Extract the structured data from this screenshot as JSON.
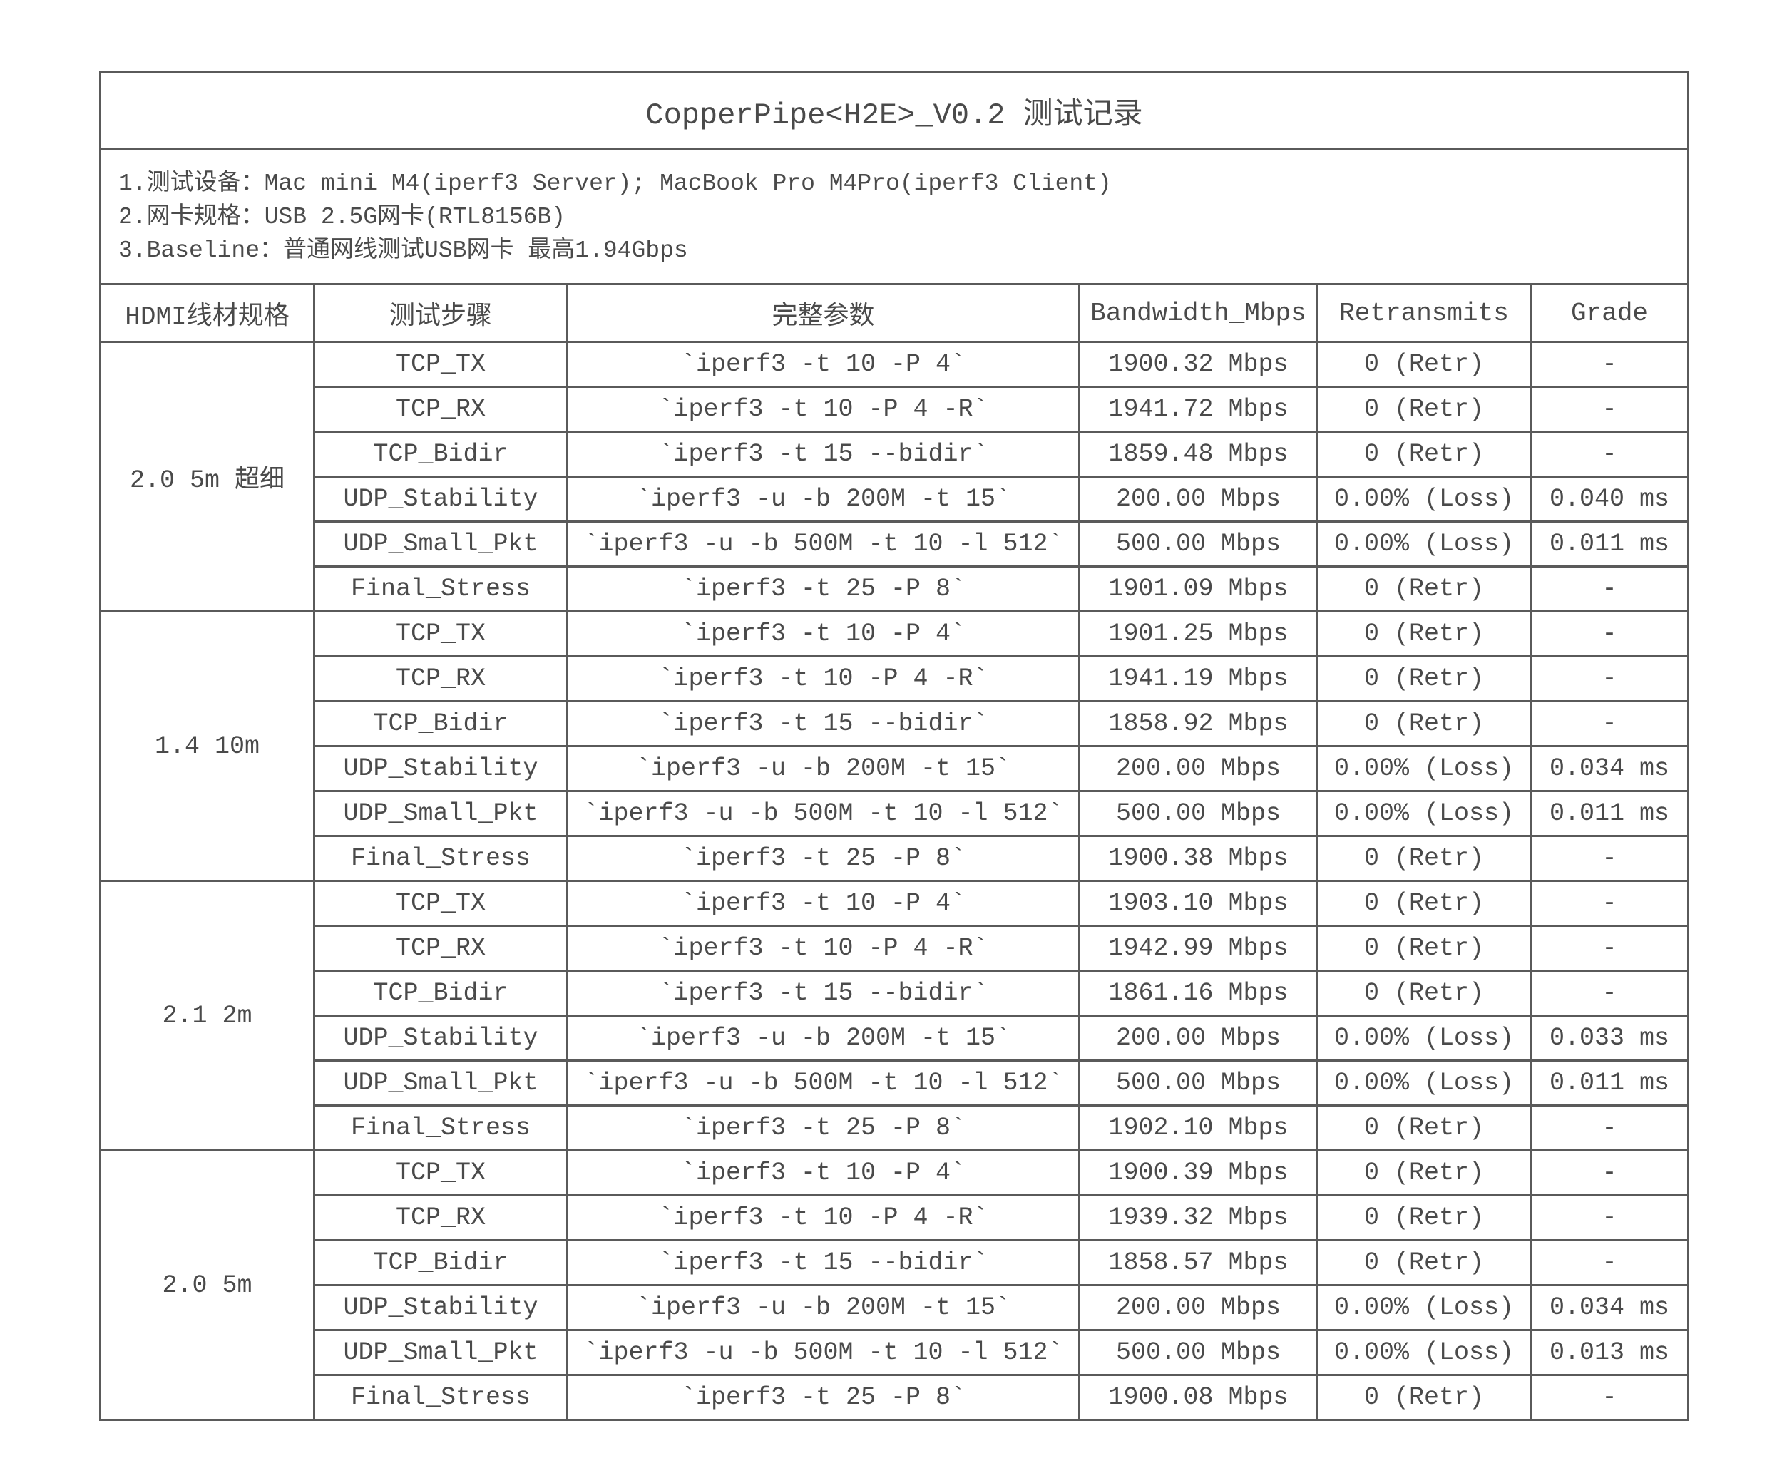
{
  "title": "CopperPipe<H2E>_V0.2 测试记录",
  "info": [
    "1.测试设备：Mac mini M4(iperf3 Server); MacBook Pro M4Pro(iperf3 Client)",
    "2.网卡规格：USB 2.5G网卡(RTL8156B)",
    "3.Baseline：普通网线测试USB网卡 最高1.94Gbps"
  ],
  "columns": [
    "HDMI线材规格",
    "测试步骤",
    "完整参数",
    "Bandwidth_Mbps",
    "Retransmits",
    "Grade"
  ],
  "groups": [
    {
      "cable": "2.0 5m 超细",
      "rows": [
        [
          "TCP_TX",
          "`iperf3 -t 10 -P 4`",
          "1900.32 Mbps",
          "0 (Retr)",
          "-"
        ],
        [
          "TCP_RX",
          "`iperf3 -t 10 -P 4 -R`",
          "1941.72 Mbps",
          "0 (Retr)",
          "-"
        ],
        [
          "TCP_Bidir",
          "`iperf3 -t 15 --bidir`",
          "1859.48 Mbps",
          "0 (Retr)",
          "-"
        ],
        [
          "UDP_Stability",
          "`iperf3 -u -b 200M -t 15`",
          "200.00 Mbps",
          "0.00% (Loss)",
          "0.040 ms"
        ],
        [
          "UDP_Small_Pkt",
          "`iperf3 -u -b 500M -t 10 -l 512`",
          "500.00 Mbps",
          "0.00% (Loss)",
          "0.011 ms"
        ],
        [
          "Final_Stress",
          "`iperf3 -t 25 -P 8`",
          "1901.09 Mbps",
          "0 (Retr)",
          "-"
        ]
      ]
    },
    {
      "cable": "1.4 10m",
      "rows": [
        [
          "TCP_TX",
          "`iperf3 -t 10 -P 4`",
          "1901.25 Mbps",
          "0 (Retr)",
          "-"
        ],
        [
          "TCP_RX",
          "`iperf3 -t 10 -P 4 -R`",
          "1941.19 Mbps",
          "0 (Retr)",
          "-"
        ],
        [
          "TCP_Bidir",
          "`iperf3 -t 15 --bidir`",
          "1858.92 Mbps",
          "0 (Retr)",
          "-"
        ],
        [
          "UDP_Stability",
          "`iperf3 -u -b 200M -t 15`",
          "200.00 Mbps",
          "0.00% (Loss)",
          "0.034 ms"
        ],
        [
          "UDP_Small_Pkt",
          "`iperf3 -u -b 500M -t 10 -l 512`",
          "500.00 Mbps",
          "0.00% (Loss)",
          "0.011 ms"
        ],
        [
          "Final_Stress",
          "`iperf3 -t 25 -P 8`",
          "1900.38 Mbps",
          "0 (Retr)",
          "-"
        ]
      ]
    },
    {
      "cable": "2.1 2m",
      "rows": [
        [
          "TCP_TX",
          "`iperf3 -t 10 -P 4`",
          "1903.10 Mbps",
          "0 (Retr)",
          "-"
        ],
        [
          "TCP_RX",
          "`iperf3 -t 10 -P 4 -R`",
          "1942.99 Mbps",
          "0 (Retr)",
          "-"
        ],
        [
          "TCP_Bidir",
          "`iperf3 -t 15 --bidir`",
          "1861.16 Mbps",
          "0 (Retr)",
          "-"
        ],
        [
          "UDP_Stability",
          "`iperf3 -u -b 200M -t 15`",
          "200.00 Mbps",
          "0.00% (Loss)",
          "0.033 ms"
        ],
        [
          "UDP_Small_Pkt",
          "`iperf3 -u -b 500M -t 10 -l 512`",
          "500.00 Mbps",
          "0.00% (Loss)",
          "0.011 ms"
        ],
        [
          "Final_Stress",
          "`iperf3 -t 25 -P 8`",
          "1902.10 Mbps",
          "0 (Retr)",
          "-"
        ]
      ]
    },
    {
      "cable": "2.0 5m",
      "rows": [
        [
          "TCP_TX",
          "`iperf3 -t 10 -P 4`",
          "1900.39 Mbps",
          "0 (Retr)",
          "-"
        ],
        [
          "TCP_RX",
          "`iperf3 -t 10 -P 4 -R`",
          "1939.32 Mbps",
          "0 (Retr)",
          "-"
        ],
        [
          "TCP_Bidir",
          "`iperf3 -t 15 --bidir`",
          "1858.57 Mbps",
          "0 (Retr)",
          "-"
        ],
        [
          "UDP_Stability",
          "`iperf3 -u -b 200M -t 15`",
          "200.00 Mbps",
          "0.00% (Loss)",
          "0.034 ms"
        ],
        [
          "UDP_Small_Pkt",
          "`iperf3 -u -b 500M -t 10 -l 512`",
          "500.00 Mbps",
          "0.00% (Loss)",
          "0.013 ms"
        ],
        [
          "Final_Stress",
          "`iperf3 -t 25 -P 8`",
          "1900.08 Mbps",
          "0 (Retr)",
          "-"
        ]
      ]
    }
  ]
}
